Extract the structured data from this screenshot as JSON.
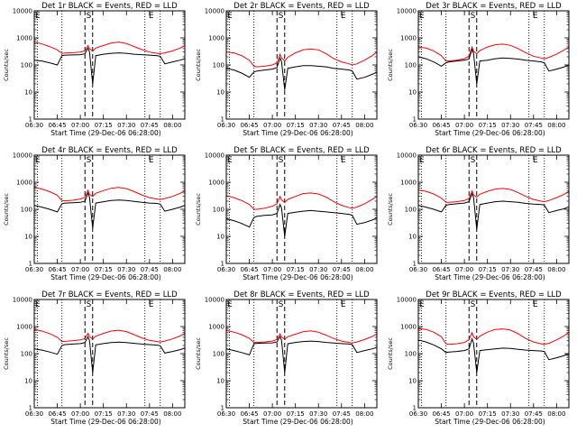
{
  "chart_data": {
    "type": "line",
    "layout": "3x3 grid",
    "y_scale": "log",
    "ylim": [
      1,
      10000
    ],
    "ytick_labels": [
      "1",
      "10",
      "100",
      "1000",
      "10000"
    ],
    "xlim": [
      "06:30",
      "08:08"
    ],
    "xtick_labels": [
      "06:30",
      "06:45",
      "07:00",
      "07:15",
      "07:30",
      "07:45",
      "08:00"
    ],
    "xlabel": "Start Time (29-Dec-06 06:28:00)",
    "ylabel": "Counts/sec",
    "series_colors": {
      "events": "#000000",
      "lld": "#ff0000"
    },
    "markers": [
      {
        "label": "E",
        "x": "06:32",
        "line": "dotted"
      },
      {
        "label": "E",
        "x": "06:48",
        "line": "dotted"
      },
      {
        "label": "S",
        "x": "07:03",
        "line": "dashed"
      },
      {
        "label": "S",
        "x": "07:08",
        "line": "dashed"
      },
      {
        "label": "E",
        "x": "07:42",
        "line": "dotted"
      },
      {
        "label": "E",
        "x": "07:52",
        "line": "dotted"
      }
    ],
    "x_times": [
      "06:30",
      "06:35",
      "06:40",
      "06:45",
      "06:48",
      "06:50",
      "06:55",
      "07:00",
      "07:03",
      "07:05",
      "07:06",
      "07:08",
      "07:10",
      "07:15",
      "07:20",
      "07:25",
      "07:30",
      "07:35",
      "07:40",
      "07:45",
      "07:50",
      "07:52",
      "07:55",
      "08:00",
      "08:05",
      "08:08"
    ],
    "panels": [
      {
        "title": "Det 1r BLACK = Events, RED = LLD",
        "events": [
          150,
          140,
          120,
          100,
          220,
          230,
          235,
          240,
          260,
          420,
          300,
          20,
          220,
          250,
          270,
          280,
          270,
          250,
          240,
          230,
          220,
          210,
          110,
          130,
          150,
          170
        ],
        "lld": [
          700,
          600,
          480,
          360,
          270,
          275,
          285,
          300,
          330,
          520,
          400,
          320,
          420,
          520,
          640,
          700,
          620,
          480,
          370,
          300,
          270,
          260,
          280,
          330,
          420,
          520
        ]
      },
      {
        "title": "Det 2r BLACK = Events, RED = LLD",
        "events": [
          75,
          65,
          50,
          35,
          55,
          60,
          65,
          70,
          80,
          180,
          130,
          12,
          75,
          85,
          95,
          95,
          90,
          85,
          75,
          70,
          65,
          60,
          30,
          35,
          45,
          55
        ],
        "lld": [
          300,
          280,
          220,
          150,
          90,
          85,
          90,
          100,
          120,
          250,
          180,
          140,
          190,
          280,
          360,
          390,
          360,
          260,
          170,
          130,
          110,
          100,
          110,
          150,
          220,
          300
        ]
      },
      {
        "title": "Det 3r BLACK = Events, RED = LLD",
        "events": [
          200,
          170,
          130,
          90,
          120,
          130,
          140,
          150,
          165,
          380,
          260,
          20,
          140,
          150,
          170,
          180,
          175,
          165,
          150,
          140,
          130,
          120,
          60,
          70,
          85,
          100
        ],
        "lld": [
          460,
          420,
          330,
          220,
          140,
          140,
          150,
          170,
          210,
          460,
          320,
          260,
          340,
          460,
          560,
          590,
          530,
          400,
          280,
          210,
          180,
          170,
          190,
          250,
          360,
          460
        ]
      },
      {
        "title": "Det 4r BLACK = Events, RED = LLD",
        "events": [
          140,
          120,
          100,
          80,
          160,
          170,
          175,
          180,
          200,
          400,
          280,
          20,
          170,
          190,
          210,
          220,
          210,
          195,
          180,
          170,
          165,
          155,
          85,
          100,
          120,
          140
        ],
        "lld": [
          660,
          560,
          450,
          330,
          210,
          205,
          215,
          240,
          280,
          500,
          360,
          300,
          390,
          490,
          600,
          640,
          580,
          450,
          340,
          270,
          240,
          230,
          250,
          300,
          390,
          480
        ]
      },
      {
        "title": "Det 5r BLACK = Events, RED = LLD",
        "events": [
          45,
          38,
          30,
          22,
          50,
          55,
          60,
          62,
          70,
          150,
          110,
          10,
          70,
          78,
          85,
          90,
          85,
          80,
          75,
          70,
          65,
          60,
          28,
          32,
          40,
          48
        ],
        "lld": [
          320,
          270,
          210,
          150,
          100,
          100,
          110,
          130,
          160,
          300,
          220,
          180,
          230,
          300,
          380,
          400,
          370,
          280,
          190,
          140,
          115,
          110,
          120,
          160,
          230,
          300
        ]
      },
      {
        "title": "Det 6r BLACK = Events, RED = LLD",
        "events": [
          140,
          120,
          100,
          80,
          140,
          150,
          160,
          170,
          190,
          380,
          270,
          18,
          150,
          170,
          190,
          200,
          190,
          180,
          165,
          155,
          150,
          145,
          75,
          90,
          105,
          125
        ],
        "lld": [
          520,
          460,
          370,
          260,
          180,
          180,
          190,
          210,
          250,
          480,
          340,
          280,
          360,
          460,
          560,
          590,
          540,
          410,
          300,
          230,
          200,
          190,
          210,
          270,
          360,
          460
        ]
      },
      {
        "title": "Det 7r BLACK = Events, RED = LLD",
        "events": [
          150,
          135,
          115,
          95,
          200,
          215,
          225,
          235,
          255,
          420,
          300,
          20,
          210,
          235,
          255,
          265,
          255,
          240,
          225,
          215,
          205,
          195,
          105,
          120,
          140,
          160
        ],
        "lld": [
          780,
          680,
          550,
          400,
          280,
          285,
          300,
          320,
          360,
          560,
          430,
          340,
          440,
          560,
          680,
          730,
          650,
          500,
          380,
          310,
          280,
          270,
          290,
          350,
          450,
          560
        ]
      },
      {
        "title": "Det 8r BLACK = Events, RED = LLD",
        "events": [
          150,
          130,
          110,
          90,
          230,
          240,
          245,
          250,
          270,
          430,
          310,
          20,
          230,
          260,
          280,
          290,
          280,
          260,
          245,
          235,
          225,
          215,
          110,
          130,
          150,
          170
        ],
        "lld": [
          720,
          620,
          500,
          370,
          260,
          260,
          270,
          290,
          330,
          540,
          410,
          330,
          420,
          520,
          640,
          690,
          620,
          480,
          360,
          290,
          260,
          250,
          270,
          330,
          430,
          540
        ]
      },
      {
        "title": "Det 9r BLACK = Events, RED = LLD",
        "events": [
          320,
          270,
          210,
          150,
          110,
          115,
          120,
          130,
          150,
          350,
          240,
          20,
          130,
          140,
          150,
          160,
          155,
          145,
          135,
          130,
          125,
          120,
          60,
          70,
          85,
          100
        ],
        "lld": [
          850,
          780,
          620,
          420,
          230,
          220,
          230,
          260,
          320,
          600,
          420,
          340,
          440,
          620,
          780,
          820,
          740,
          540,
          360,
          270,
          230,
          220,
          240,
          320,
          460,
          620
        ]
      }
    ]
  }
}
